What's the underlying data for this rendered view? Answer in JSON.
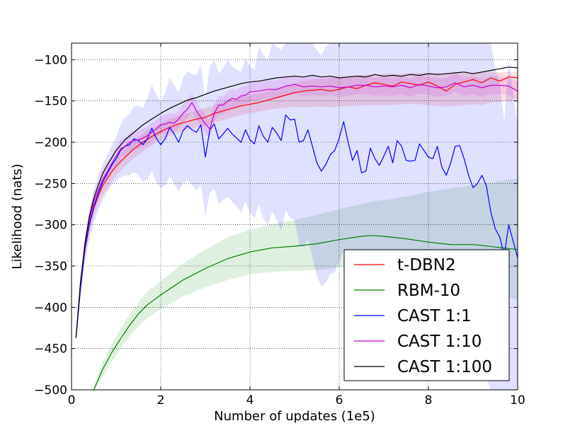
{
  "chart_data": {
    "type": "line",
    "title": "",
    "xlabel": "Number of updates (1e5)",
    "ylabel": "Likelihood (nats)",
    "xlim": [
      0,
      10
    ],
    "ylim": [
      -500,
      -80
    ],
    "xticks": [
      0,
      2,
      4,
      6,
      8,
      10
    ],
    "yticks": [
      -100,
      -150,
      -200,
      -250,
      -300,
      -350,
      -400,
      -450,
      -500
    ],
    "xtick_labels": [
      "0",
      "2",
      "4",
      "6",
      "8",
      "10"
    ],
    "ytick_labels": [
      "−100",
      "−150",
      "−200",
      "−250",
      "−300",
      "−350",
      "−400",
      "−450",
      "−500"
    ],
    "grid": true,
    "grid_style": "dotted",
    "legend_position": "lower-right",
    "series": [
      {
        "name": "t-DBN2",
        "color": "#ff0000",
        "x": [
          0.1,
          0.2,
          0.3,
          0.4,
          0.5,
          0.6,
          0.7,
          0.8,
          0.9,
          1.0,
          1.2,
          1.4,
          1.6,
          1.8,
          2.0,
          2.2,
          2.4,
          2.6,
          2.8,
          3.0,
          3.2,
          3.4,
          3.6,
          3.8,
          4.0,
          4.2,
          4.4,
          4.6,
          4.8,
          5.0,
          5.2,
          5.4,
          5.6,
          5.8,
          6.0,
          6.2,
          6.4,
          6.6,
          6.8,
          7.0,
          7.2,
          7.4,
          7.6,
          7.8,
          8.0,
          8.2,
          8.4,
          8.6,
          8.8,
          9.0,
          9.2,
          9.4,
          9.6,
          9.8,
          10.0
        ],
        "y": [
          -437,
          -375,
          -330,
          -300,
          -280,
          -265,
          -252,
          -244,
          -236,
          -229,
          -218,
          -208,
          -200,
          -193,
          -187,
          -182,
          -178,
          -175,
          -172,
          -170,
          -165,
          -162,
          -159,
          -156,
          -154,
          -152,
          -149,
          -146,
          -143,
          -140,
          -138,
          -137,
          -136,
          -138,
          -136,
          -133,
          -135,
          -131,
          -128,
          -130,
          -132,
          -127,
          -129,
          -131,
          -127,
          -132,
          -138,
          -130,
          -127,
          -124,
          -128,
          -122,
          -126,
          -121,
          -122
        ],
        "band_lower": [
          -442,
          -382,
          -338,
          -310,
          -290,
          -276,
          -264,
          -256,
          -248,
          -240,
          -229,
          -219,
          -211,
          -204,
          -197,
          -192,
          -188,
          -185,
          -182,
          -180,
          -176,
          -173,
          -170,
          -167,
          -165,
          -163,
          -161,
          -159,
          -158,
          -157,
          -158,
          -157,
          -157,
          -158,
          -157,
          -156,
          -156,
          -155,
          -155,
          -155,
          -155,
          -154,
          -154,
          -154,
          -155,
          -156,
          -157,
          -156,
          -155,
          -154,
          -155,
          -152,
          -151,
          -150,
          -150
        ],
        "band_upper": [
          -432,
          -368,
          -322,
          -292,
          -270,
          -255,
          -242,
          -233,
          -225,
          -219,
          -208,
          -198,
          -190,
          -183,
          -177,
          -172,
          -168,
          -165,
          -162,
          -159,
          -155,
          -151,
          -148,
          -145,
          -143,
          -141,
          -138,
          -135,
          -132,
          -129,
          -126,
          -124,
          -123,
          -122,
          -121,
          -120,
          -119,
          -118,
          -118,
          -117,
          -117,
          -117,
          -116,
          -116,
          -116,
          -116,
          -117,
          -116,
          -116,
          -115,
          -115,
          -115,
          -115,
          -115,
          -115
        ]
      },
      {
        "name": "RBM-10",
        "color": "#008000",
        "x": [
          0.5,
          0.7,
          0.9,
          1.1,
          1.3,
          1.5,
          1.7,
          2.0,
          2.5,
          3.0,
          3.5,
          4.0,
          4.5,
          5.0,
          5.5,
          6.0,
          6.5,
          6.7,
          7.0,
          7.5,
          8.0,
          8.5,
          9.0,
          9.2,
          9.5,
          10.0
        ],
        "y": [
          -500,
          -475,
          -455,
          -438,
          -422,
          -408,
          -397,
          -385,
          -367,
          -353,
          -341,
          -333,
          -328,
          -326,
          -323,
          -318,
          -314,
          -313,
          -314,
          -317,
          -321,
          -324,
          -324,
          -325,
          -327,
          -330
        ],
        "band_lower": [
          -504,
          -484,
          -466,
          -450,
          -435,
          -423,
          -413,
          -402,
          -387,
          -376,
          -367,
          -360,
          -357,
          -356,
          -355,
          -352,
          -350,
          -349,
          -350,
          -354,
          -359,
          -365,
          -370,
          -374,
          -380,
          -392
        ],
        "band_upper": [
          -496,
          -466,
          -444,
          -426,
          -409,
          -394,
          -381,
          -368,
          -347,
          -330,
          -315,
          -306,
          -299,
          -294,
          -288,
          -281,
          -275,
          -272,
          -270,
          -266,
          -260,
          -256,
          -252,
          -250,
          -248,
          -244
        ]
      },
      {
        "name": "CAST 1:1",
        "color": "#0000ff",
        "x": [
          0.1,
          0.2,
          0.3,
          0.4,
          0.5,
          0.6,
          0.7,
          0.8,
          0.9,
          1.0,
          1.1,
          1.2,
          1.3,
          1.4,
          1.5,
          1.6,
          1.7,
          1.8,
          1.9,
          2.0,
          2.1,
          2.2,
          2.3,
          2.4,
          2.5,
          2.6,
          2.7,
          2.8,
          2.9,
          3.0,
          3.1,
          3.2,
          3.3,
          3.4,
          3.5,
          3.6,
          3.7,
          3.8,
          3.9,
          4.0,
          4.1,
          4.2,
          4.3,
          4.4,
          4.5,
          4.6,
          4.7,
          4.8,
          4.9,
          5.0,
          5.1,
          5.2,
          5.3,
          5.4,
          5.5,
          5.6,
          5.7,
          5.8,
          5.9,
          6.0,
          6.1,
          6.2,
          6.3,
          6.4,
          6.5,
          6.6,
          6.7,
          6.8,
          6.9,
          7.0,
          7.1,
          7.2,
          7.3,
          7.4,
          7.5,
          7.6,
          7.7,
          7.8,
          7.9,
          8.0,
          8.1,
          8.2,
          8.3,
          8.4,
          8.5,
          8.6,
          8.7,
          8.8,
          8.9,
          9.0,
          9.1,
          9.2,
          9.3,
          9.4,
          9.5,
          9.6,
          9.7,
          9.8,
          9.9,
          10.0
        ],
        "y": [
          -437,
          -378,
          -330,
          -300,
          -278,
          -262,
          -248,
          -238,
          -228,
          -220,
          -210,
          -205,
          -203,
          -196,
          -198,
          -203,
          -196,
          -183,
          -195,
          -203,
          -196,
          -182,
          -190,
          -200,
          -186,
          -180,
          -185,
          -188,
          -179,
          -218,
          -185,
          -178,
          -196,
          -190,
          -183,
          -190,
          -195,
          -200,
          -185,
          -197,
          -202,
          -180,
          -193,
          -200,
          -182,
          -189,
          -198,
          -167,
          -173,
          -172,
          -200,
          -198,
          -185,
          -205,
          -225,
          -235,
          -227,
          -215,
          -210,
          -195,
          -175,
          -200,
          -222,
          -210,
          -237,
          -235,
          -207,
          -220,
          -228,
          -217,
          -205,
          -225,
          -198,
          -205,
          -222,
          -223,
          -222,
          -202,
          -210,
          -218,
          -220,
          -205,
          -230,
          -240,
          -225,
          -205,
          -204,
          -220,
          -240,
          -255,
          -250,
          -240,
          -253,
          -285,
          -305,
          -315,
          -337,
          -300,
          -320,
          -340
        ],
        "band_lower": [
          -442,
          -388,
          -345,
          -318,
          -298,
          -283,
          -270,
          -260,
          -252,
          -246,
          -242,
          -240,
          -240,
          -236,
          -240,
          -248,
          -245,
          -235,
          -248,
          -255,
          -252,
          -242,
          -250,
          -260,
          -250,
          -246,
          -252,
          -258,
          -252,
          -290,
          -262,
          -256,
          -275,
          -270,
          -266,
          -272,
          -278,
          -285,
          -272,
          -286,
          -292,
          -276,
          -292,
          -300,
          -284,
          -294,
          -308,
          -282,
          -292,
          -294,
          -325,
          -327,
          -318,
          -340,
          -362,
          -375,
          -370,
          -360,
          -358,
          -345,
          -330,
          -358,
          -382,
          -372,
          -402,
          -402,
          -378,
          -394,
          -404,
          -396,
          -386,
          -408,
          -384,
          -394,
          -412,
          -416,
          -418,
          -400,
          -410,
          -420,
          -424,
          -412,
          -440,
          -452,
          -440,
          -424,
          -426,
          -444,
          -466,
          -482,
          -480,
          -472,
          -488,
          -500,
          -500,
          -500,
          -500,
          -500,
          -500,
          -500
        ],
        "band_upper": [
          -432,
          -368,
          -315,
          -282,
          -258,
          -241,
          -226,
          -216,
          -204,
          -194,
          -178,
          -170,
          -166,
          -156,
          -156,
          -158,
          -147,
          -131,
          -142,
          -151,
          -140,
          -122,
          -130,
          -140,
          -122,
          -114,
          -118,
          -118,
          -106,
          -146,
          -108,
          -100,
          -117,
          -110,
          -100,
          -108,
          -112,
          -115,
          -98,
          -108,
          -112,
          -84,
          -94,
          -100,
          -80,
          -84,
          -88,
          -52,
          -54,
          -50,
          -75,
          -69,
          -52,
          -70,
          -88,
          -95,
          -84,
          -70,
          -62,
          -45,
          -20,
          -42,
          -62,
          -48,
          -72,
          -68,
          -36,
          -46,
          -52,
          -38,
          -24,
          -42,
          -12,
          -16,
          -32,
          -30,
          -26,
          -4,
          -10,
          -16,
          -16,
          2,
          -20,
          -28,
          -10,
          14,
          16,
          0,
          -14,
          -28,
          -20,
          -8,
          -18,
          -70,
          -110,
          -130,
          -174,
          -100,
          -140,
          -180
        ]
      },
      {
        "name": "CAST 1:10",
        "color": "#cc00cc",
        "x": [
          0.1,
          0.2,
          0.3,
          0.4,
          0.5,
          0.6,
          0.7,
          0.8,
          0.9,
          1.0,
          1.1,
          1.2,
          1.3,
          1.4,
          1.5,
          1.6,
          1.7,
          1.8,
          1.9,
          2.0,
          2.1,
          2.2,
          2.3,
          2.4,
          2.5,
          2.6,
          2.7,
          2.8,
          2.9,
          3.0,
          3.1,
          3.2,
          3.3,
          3.4,
          3.5,
          3.6,
          3.7,
          3.8,
          3.9,
          4.0,
          4.2,
          4.4,
          4.6,
          4.8,
          5.0,
          5.2,
          5.4,
          5.6,
          5.8,
          6.0,
          6.2,
          6.4,
          6.6,
          6.8,
          7.0,
          7.2,
          7.4,
          7.6,
          7.8,
          8.0,
          8.2,
          8.4,
          8.6,
          8.8,
          9.0,
          9.2,
          9.4,
          9.6,
          9.8,
          10.0
        ],
        "y": [
          -437,
          -372,
          -326,
          -294,
          -272,
          -258,
          -245,
          -236,
          -226,
          -217,
          -208,
          -205,
          -200,
          -198,
          -197,
          -195,
          -192,
          -188,
          -184,
          -179,
          -178,
          -176,
          -177,
          -172,
          -165,
          -160,
          -152,
          -162,
          -170,
          -178,
          -184,
          -165,
          -155,
          -155,
          -150,
          -147,
          -148,
          -144,
          -143,
          -139,
          -138,
          -136,
          -136,
          -132,
          -130,
          -133,
          -132,
          -133,
          -132,
          -134,
          -133,
          -131,
          -131,
          -133,
          -132,
          -133,
          -131,
          -134,
          -130,
          -132,
          -134,
          -133,
          -128,
          -133,
          -131,
          -134,
          -131,
          -131,
          -132,
          -138
        ],
        "band_lower": [
          -442,
          -380,
          -335,
          -303,
          -282,
          -268,
          -256,
          -247,
          -237,
          -228,
          -219,
          -216,
          -211,
          -209,
          -208,
          -206,
          -203,
          -199,
          -195,
          -190,
          -189,
          -187,
          -188,
          -183,
          -176,
          -171,
          -163,
          -173,
          -181,
          -189,
          -195,
          -176,
          -166,
          -166,
          -161,
          -158,
          -159,
          -155,
          -154,
          -150,
          -149,
          -147,
          -147,
          -143,
          -141,
          -144,
          -143,
          -144,
          -143,
          -145,
          -144,
          -142,
          -142,
          -144,
          -143,
          -144,
          -142,
          -145,
          -141,
          -143,
          -145,
          -144,
          -139,
          -144,
          -142,
          -145,
          -142,
          -142,
          -143,
          -149
        ],
        "band_upper": [
          -432,
          -364,
          -317,
          -285,
          -262,
          -248,
          -234,
          -225,
          -215,
          -206,
          -197,
          -194,
          -189,
          -187,
          -186,
          -184,
          -181,
          -177,
          -173,
          -168,
          -167,
          -165,
          -166,
          -161,
          -154,
          -149,
          -141,
          -151,
          -159,
          -167,
          -173,
          -154,
          -144,
          -144,
          -139,
          -136,
          -137,
          -133,
          -132,
          -128,
          -127,
          -125,
          -125,
          -121,
          -119,
          -122,
          -121,
          -122,
          -121,
          -123,
          -122,
          -120,
          -120,
          -122,
          -121,
          -122,
          -120,
          -123,
          -119,
          -121,
          -123,
          -122,
          -117,
          -122,
          -120,
          -123,
          -120,
          -120,
          -121,
          -127
        ]
      },
      {
        "name": "CAST 1:100",
        "color": "#000000",
        "x": [
          0.1,
          0.2,
          0.3,
          0.4,
          0.5,
          0.6,
          0.7,
          0.8,
          0.9,
          1.0,
          1.2,
          1.4,
          1.6,
          1.8,
          2.0,
          2.2,
          2.4,
          2.6,
          2.8,
          3.0,
          3.2,
          3.4,
          3.6,
          3.8,
          4.0,
          4.2,
          4.4,
          4.6,
          4.8,
          5.0,
          5.2,
          5.4,
          5.6,
          5.8,
          6.0,
          6.2,
          6.4,
          6.6,
          6.8,
          7.0,
          7.2,
          7.4,
          7.6,
          7.8,
          8.0,
          8.2,
          8.4,
          8.6,
          8.8,
          9.0,
          9.2,
          9.4,
          9.6,
          9.8,
          10.0
        ],
        "y": [
          -437,
          -370,
          -323,
          -290,
          -268,
          -252,
          -238,
          -228,
          -219,
          -210,
          -197,
          -188,
          -179,
          -172,
          -165,
          -159,
          -154,
          -149,
          -146,
          -142,
          -138,
          -135,
          -132,
          -129,
          -127,
          -126,
          -124,
          -122,
          -121,
          -120,
          -121,
          -119,
          -121,
          -120,
          -122,
          -121,
          -120,
          -121,
          -118,
          -120,
          -119,
          -120,
          -118,
          -119,
          -117,
          -118,
          -117,
          -116,
          -115,
          -117,
          -115,
          -113,
          -111,
          -109,
          -110
        ]
      }
    ]
  }
}
